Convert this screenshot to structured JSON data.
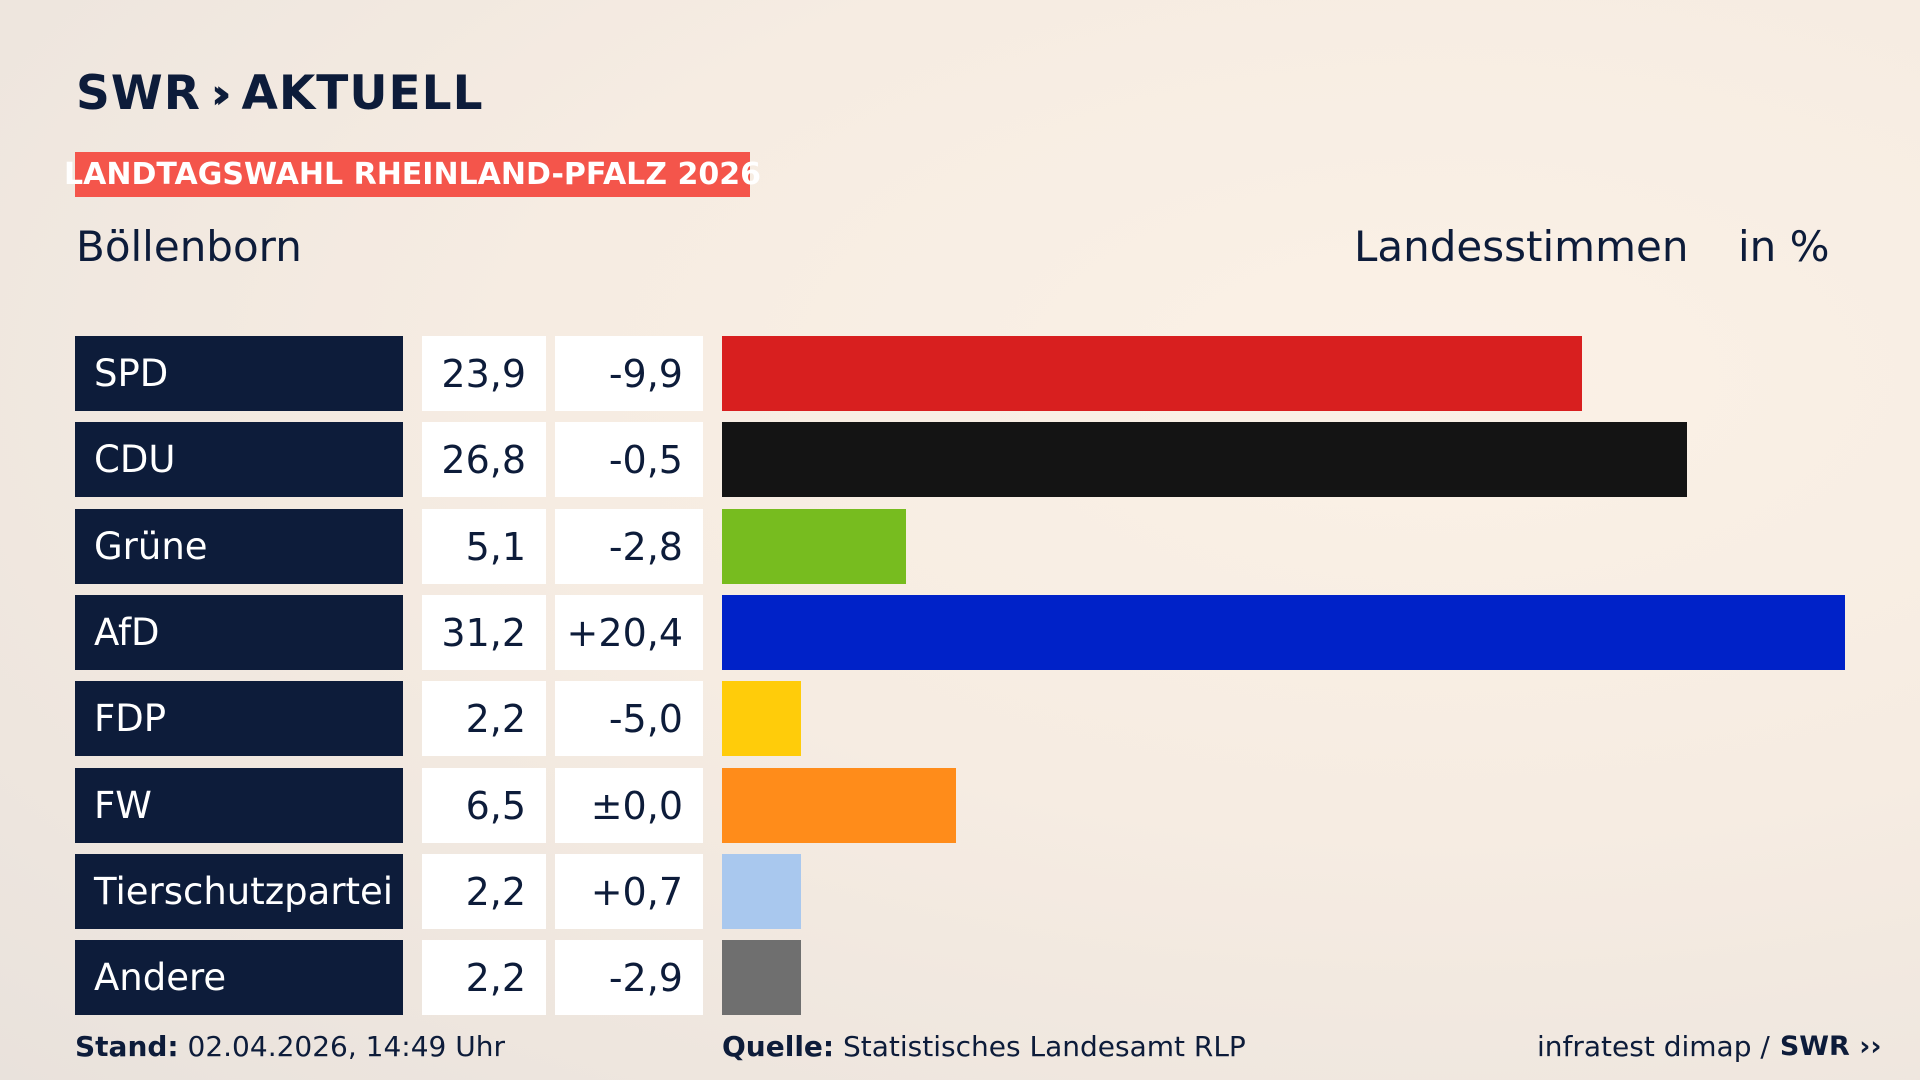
{
  "brand": {
    "logo_text": "SWR",
    "logo_suffix": "AKTUELL"
  },
  "header": {
    "kicker": "LANDTAGSWAHL RHEINLAND-PFALZ 2026",
    "place": "Böllenborn",
    "metric": "Landesstimmen",
    "unit": "in %"
  },
  "colors": {
    "navy": "#0d1c3a",
    "kicker": "#f4554b"
  },
  "chart_data": {
    "type": "bar",
    "orientation": "horizontal",
    "categories": [
      "SPD",
      "CDU",
      "Grüne",
      "AfD",
      "FDP",
      "FW",
      "Tierschutzpartei",
      "Andere"
    ],
    "values": [
      23.9,
      26.8,
      5.1,
      31.2,
      2.2,
      6.5,
      2.2,
      2.2
    ],
    "value_labels": [
      "23,9",
      "26,8",
      "5,1",
      "31,2",
      "2,2",
      "6,5",
      "2,2",
      "2,2"
    ],
    "change_labels": [
      "-9,9",
      "-0,5",
      "-2,8",
      "+20,4",
      "-5,0",
      "±0,0",
      "+0,7",
      "-2,9"
    ],
    "changes": [
      -9.9,
      -0.5,
      -2.8,
      20.4,
      -5.0,
      0.0,
      0.7,
      -2.9
    ],
    "colors": [
      "#d81f1f",
      "#141414",
      "#77bc1f",
      "#0022c8",
      "#ffcc0a",
      "#ff8c1a",
      "#a9c8ee",
      "#6f6f6f"
    ],
    "xlim": [
      0,
      31.2
    ],
    "legend": "none",
    "grid": false
  },
  "footer": {
    "stand_label": "Stand:",
    "stand_value": "02.04.2026, 14:49 Uhr",
    "source_label": "Quelle:",
    "source_value": "Statistisches Landesamt RLP",
    "credit": "infratest dimap /",
    "credit_logo": "SWR"
  }
}
